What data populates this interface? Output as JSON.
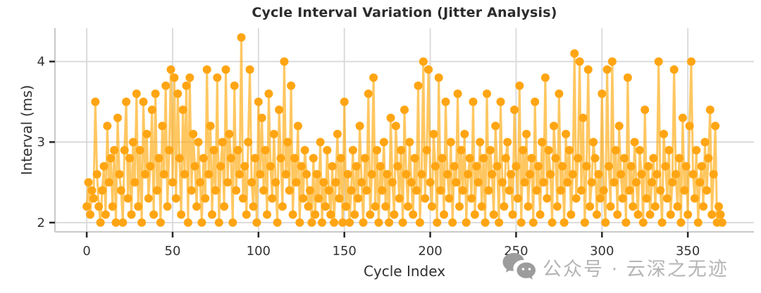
{
  "page": {
    "background": "#ffffff"
  },
  "chart_data": {
    "type": "line",
    "title": "Cycle Interval Variation (Jitter Analysis)",
    "xlabel": "Cycle Index",
    "ylabel": "Interval (ms)",
    "legend": "none",
    "grid": true,
    "marker": "circle",
    "xticks": [
      0,
      50,
      100,
      150,
      200,
      250,
      300,
      350
    ],
    "yticks": [
      2,
      3,
      4
    ],
    "xlim": [
      -18.5,
      388.5
    ],
    "ylim": [
      1.885,
      4.415
    ],
    "x_start": 0,
    "x_step": 1,
    "colors": {
      "series": "#FFA513",
      "series_line": "#FFA500",
      "grid": "#D9D9D9",
      "spine": "#C9C9C9",
      "tick": "#262626",
      "tick_label": "#333333",
      "title": "#2B2B2B",
      "watermark_text": "#B5B5B5",
      "watermark_icon": "#9C9C9C"
    },
    "values": [
      2.2,
      2.5,
      2.1,
      2.4,
      2.3,
      3.5,
      2.6,
      2.2,
      2.0,
      2.4,
      2.7,
      2.1,
      3.2,
      2.5,
      2.8,
      2.2,
      2.9,
      2.0,
      3.3,
      2.6,
      2.4,
      2.0,
      2.9,
      3.5,
      2.3,
      2.8,
      2.1,
      3.0,
      2.5,
      3.6,
      2.2,
      2.9,
      2.0,
      3.5,
      2.6,
      3.1,
      2.3,
      2.7,
      3.4,
      2.1,
      3.6,
      2.4,
      2.8,
      2.0,
      3.2,
      2.6,
      3.7,
      2.2,
      2.9,
      3.9,
      2.5,
      3.8,
      2.3,
      3.6,
      2.8,
      2.1,
      3.4,
      2.6,
      3.7,
      2.0,
      3.8,
      2.4,
      3.1,
      2.7,
      2.2,
      3.0,
      2.5,
      2.0,
      2.8,
      2.3,
      3.9,
      2.6,
      3.2,
      2.1,
      2.9,
      2.4,
      3.8,
      2.0,
      2.7,
      3.0,
      2.2,
      3.9,
      2.5,
      3.1,
      2.8,
      2.0,
      3.7,
      2.4,
      2.9,
      2.6,
      4.3,
      2.3,
      2.7,
      2.1,
      3.0,
      3.9,
      2.5,
      2.2,
      2.8,
      2.0,
      3.5,
      2.6,
      3.3,
      2.4,
      2.9,
      2.1,
      3.6,
      2.7,
      2.3,
      3.1,
      2.5,
      2.0,
      3.4,
      2.8,
      2.2,
      4.0,
      2.6,
      3.0,
      2.4,
      3.7,
      2.1,
      2.8,
      2.5,
      3.2,
      2.0,
      2.7,
      2.3,
      2.9,
      2.6,
      2.2,
      2.4,
      2.0,
      2.8,
      2.1,
      2.6,
      2.3,
      3.0,
      2.0,
      2.5,
      2.2,
      2.9,
      2.4,
      2.1,
      2.7,
      2.0,
      2.5,
      3.1,
      2.3,
      2.8,
      2.0,
      3.5,
      2.2,
      2.6,
      2.0,
      2.4,
      2.9,
      2.1,
      2.7,
      2.3,
      3.2,
      2.5,
      2.0,
      2.8,
      2.4,
      3.6,
      2.1,
      2.6,
      3.8,
      2.2,
      2.9,
      2.0,
      2.7,
      2.4,
      3.0,
      2.2,
      2.6,
      2.0,
      3.3,
      2.5,
      2.1,
      3.2,
      2.7,
      2.3,
      2.9,
      2.0,
      3.4,
      2.6,
      2.2,
      3.0,
      2.5,
      2.1,
      2.8,
      2.4,
      3.7,
      2.0,
      2.6,
      4.0,
      2.3,
      2.9,
      3.9,
      2.5,
      2.2,
      3.1,
      2.7,
      2.0,
      3.8,
      2.4,
      2.8,
      2.1,
      3.5,
      2.6,
      2.3,
      3.0,
      2.0,
      2.7,
      2.5,
      3.6,
      2.2,
      2.9,
      2.4,
      3.1,
      2.0,
      2.6,
      2.8,
      2.3,
      3.5,
      2.1,
      2.7,
      2.5,
      3.0,
      2.2,
      2.8,
      2.0,
      3.6,
      2.4,
      2.9,
      2.6,
      2.1,
      3.2,
      2.7,
      2.0,
      3.5,
      2.5,
      2.2,
      2.8,
      3.0,
      2.4,
      2.6,
      2.1,
      3.4,
      2.7,
      2.3,
      3.7,
      2.0,
      2.9,
      2.5,
      3.1,
      2.2,
      2.6,
      2.8,
      2.0,
      3.5,
      2.4,
      2.7,
      2.1,
      3.0,
      2.5,
      3.8,
      2.3,
      2.9,
      2.6,
      2.0,
      3.2,
      2.8,
      2.2,
      3.6,
      2.4,
      2.7,
      2.0,
      3.1,
      2.5,
      2.9,
      2.1,
      2.6,
      4.1,
      2.3,
      2.8,
      4.0,
      2.4,
      3.3,
      2.0,
      2.7,
      3.9,
      2.2,
      2.5,
      3.0,
      2.8,
      2.1,
      2.6,
      2.3,
      3.6,
      2.4,
      2.0,
      3.9,
      2.7,
      2.2,
      4.0,
      2.5,
      2.9,
      2.1,
      3.2,
      2.6,
      2.3,
      2.8,
      2.0,
      3.8,
      2.4,
      2.7,
      2.2,
      3.0,
      2.5,
      2.1,
      2.9,
      2.6,
      2.0,
      3.4,
      2.3,
      2.7,
      2.1,
      2.5,
      2.8,
      2.2,
      2.6,
      4.0,
      2.4,
      2.0,
      3.1,
      2.7,
      2.3,
      2.9,
      2.1,
      2.5,
      3.9,
      2.6,
      2.2,
      2.8,
      2.0,
      3.3,
      2.4,
      2.7,
      2.1,
      3.2,
      4.0,
      2.6,
      2.3,
      2.9,
      2.0,
      2.5,
      2.7,
      2.2,
      3.0,
      2.4,
      2.8,
      3.4,
      2.1,
      2.6,
      3.2,
      2.0,
      2.2,
      2.1,
      2.0
    ]
  },
  "watermark": {
    "text": "公众号 · 云深之无迹",
    "icon": "wechat-icon"
  }
}
